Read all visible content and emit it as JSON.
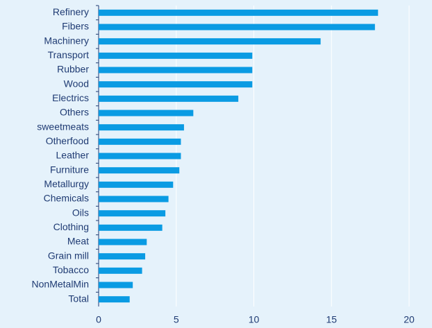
{
  "chart_data": {
    "type": "barh",
    "categories": [
      "Refinery",
      "Fibers",
      "Machinery",
      "Transport",
      "Rubber",
      "Wood",
      "Electrics",
      "Others",
      "sweetmeats",
      "Otherfood",
      "Leather",
      "Furniture",
      "Metallurgy",
      "Chemicals",
      "Oils",
      "Clothing",
      "Meat",
      "Grain mill",
      "Tobacco",
      "NonMetalMin",
      "Total"
    ],
    "values": [
      18.0,
      17.8,
      14.3,
      9.9,
      9.9,
      9.9,
      9.0,
      6.1,
      5.5,
      5.3,
      5.3,
      5.2,
      4.8,
      4.5,
      4.3,
      4.1,
      3.1,
      3.0,
      2.8,
      2.2,
      2.0
    ],
    "color": "#0a9be3",
    "xlim": [
      0,
      20
    ],
    "xticks": [
      0,
      5,
      10,
      15,
      20
    ],
    "grid": true
  }
}
